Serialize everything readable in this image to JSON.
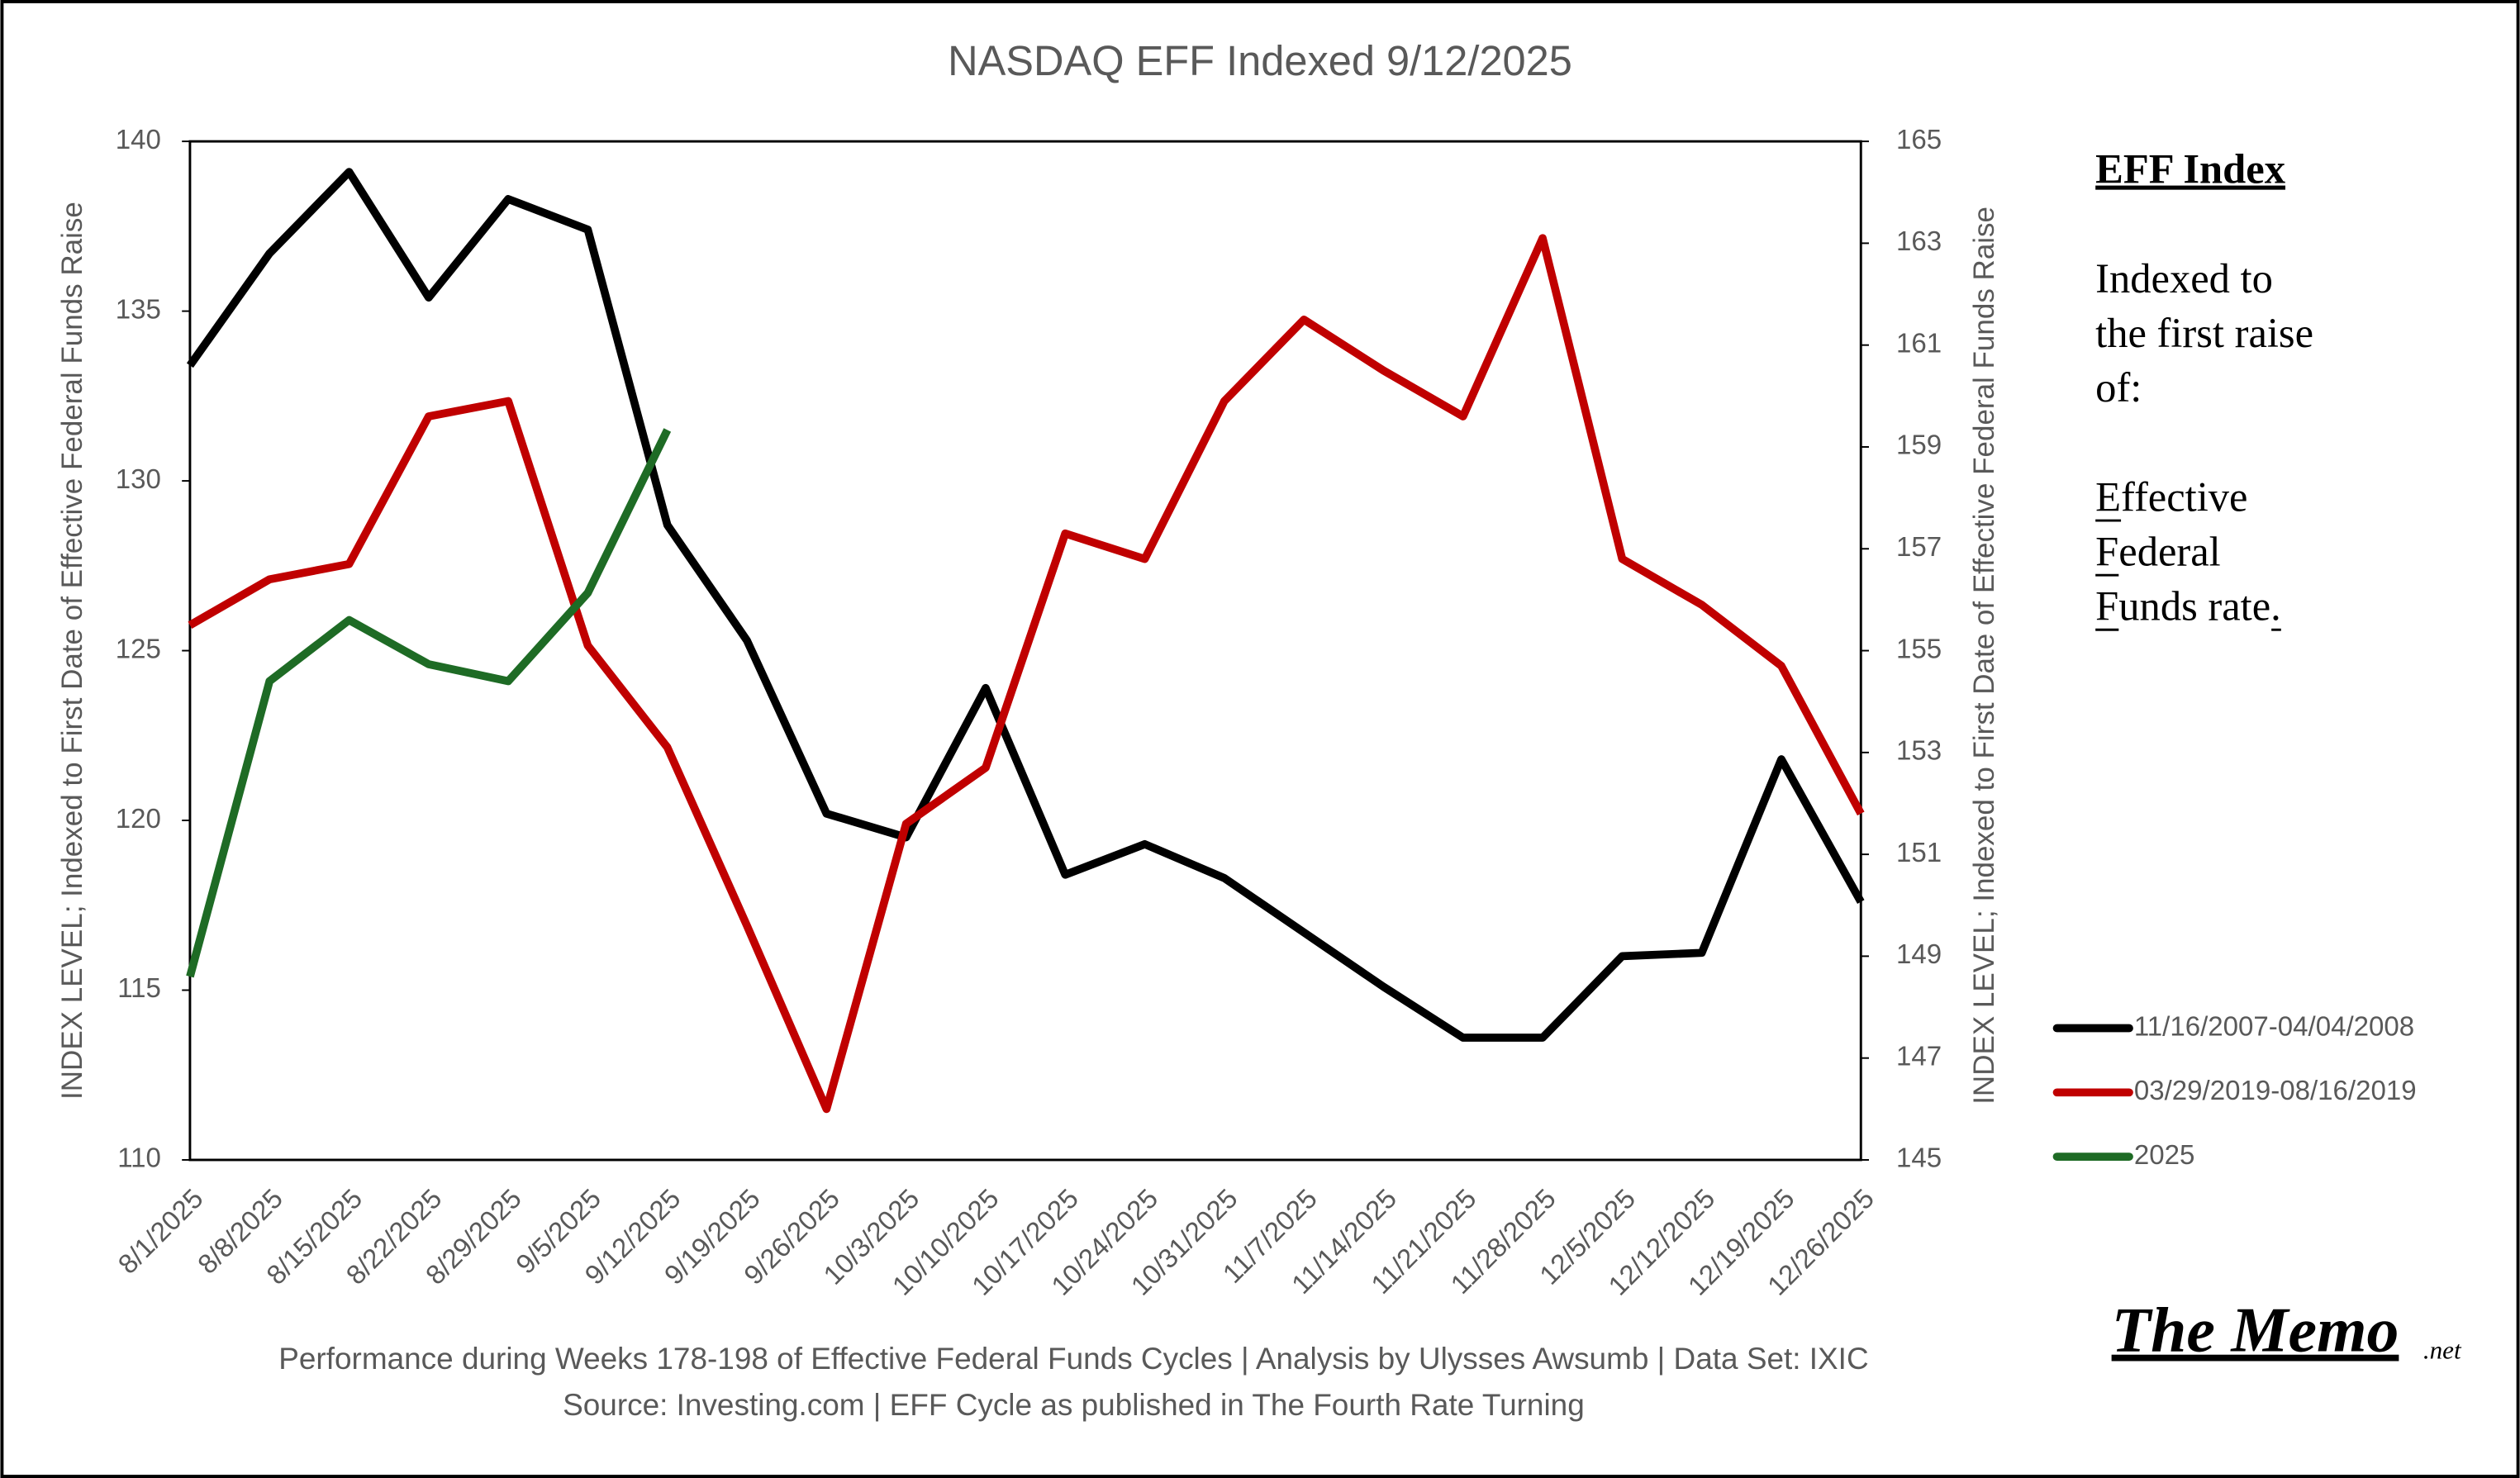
{
  "chart_data": {
    "type": "line",
    "title": "NASDAQ EFF Indexed 9/12/2025",
    "ylabel": "INDEX LEVEL; Indexed to First Date of Effective Federal Funds Raise",
    "y2label": "INDEX LEVEL; Indexed to First Date of Effective Federal Funds Raise",
    "categories": [
      "8/1/2025",
      "8/8/2025",
      "8/15/2025",
      "8/22/2025",
      "8/29/2025",
      "9/5/2025",
      "9/12/2025",
      "9/19/2025",
      "9/26/2025",
      "10/3/2025",
      "10/10/2025",
      "10/17/2025",
      "10/24/2025",
      "10/31/2025",
      "11/7/2025",
      "11/14/2025",
      "11/21/2025",
      "11/28/2025",
      "12/5/2025",
      "12/12/2025",
      "12/19/2025",
      "12/26/2025"
    ],
    "series": [
      {
        "name": "11/16/2007-04/04/2008",
        "color": "#000000",
        "axis": "y",
        "values": [
          133.4,
          136.7,
          139.1,
          135.4,
          138.3,
          137.4,
          128.7,
          125.3,
          120.2,
          119.5,
          123.9,
          118.4,
          119.3,
          118.3,
          116.7,
          115.1,
          113.6,
          113.6,
          116.0,
          116.1,
          121.8,
          117.6
        ]
      },
      {
        "name": "03/29/2019-08/16/2019",
        "color": "#c00000",
        "axis": "y2",
        "values": [
          155.5,
          156.4,
          156.7,
          159.6,
          159.9,
          155.1,
          153.1,
          149.6,
          146.0,
          151.6,
          152.7,
          157.3,
          156.8,
          159.9,
          161.5,
          160.5,
          159.6,
          163.1,
          156.8,
          155.9,
          154.7,
          151.8
        ]
      },
      {
        "name": "2025",
        "color": "#1e6b25",
        "axis": "y",
        "values": [
          115.4,
          124.1,
          125.9,
          124.6,
          124.1,
          126.7,
          131.5,
          null,
          null,
          null,
          null,
          null,
          null,
          null,
          null,
          null,
          null,
          null,
          null,
          null,
          null,
          null
        ]
      }
    ],
    "ylim": [
      110,
      140
    ],
    "yticks": [
      110,
      115,
      120,
      125,
      130,
      135,
      140
    ],
    "y2lim": [
      145,
      165
    ],
    "y2ticks": [
      145,
      147,
      149,
      151,
      153,
      155,
      157,
      159,
      161,
      163,
      165
    ],
    "grid": false,
    "legend": "lower right",
    "side_title": "EFF Index",
    "side_text": [
      "Indexed to",
      "the first raise",
      "of:",
      "Effective",
      "Federal",
      "Funds rate."
    ],
    "footer": [
      "Performance during Weeks 178-198 of Effective Federal Funds Cycles  |  Analysis  by Ulysses Awsumb  |  Data Set: IXIC",
      "Source: Investing.com  |  EFF Cycle as published in The Fourth Rate Turning"
    ],
    "logo": "The Memo",
    "logo_suffix": ".net"
  }
}
